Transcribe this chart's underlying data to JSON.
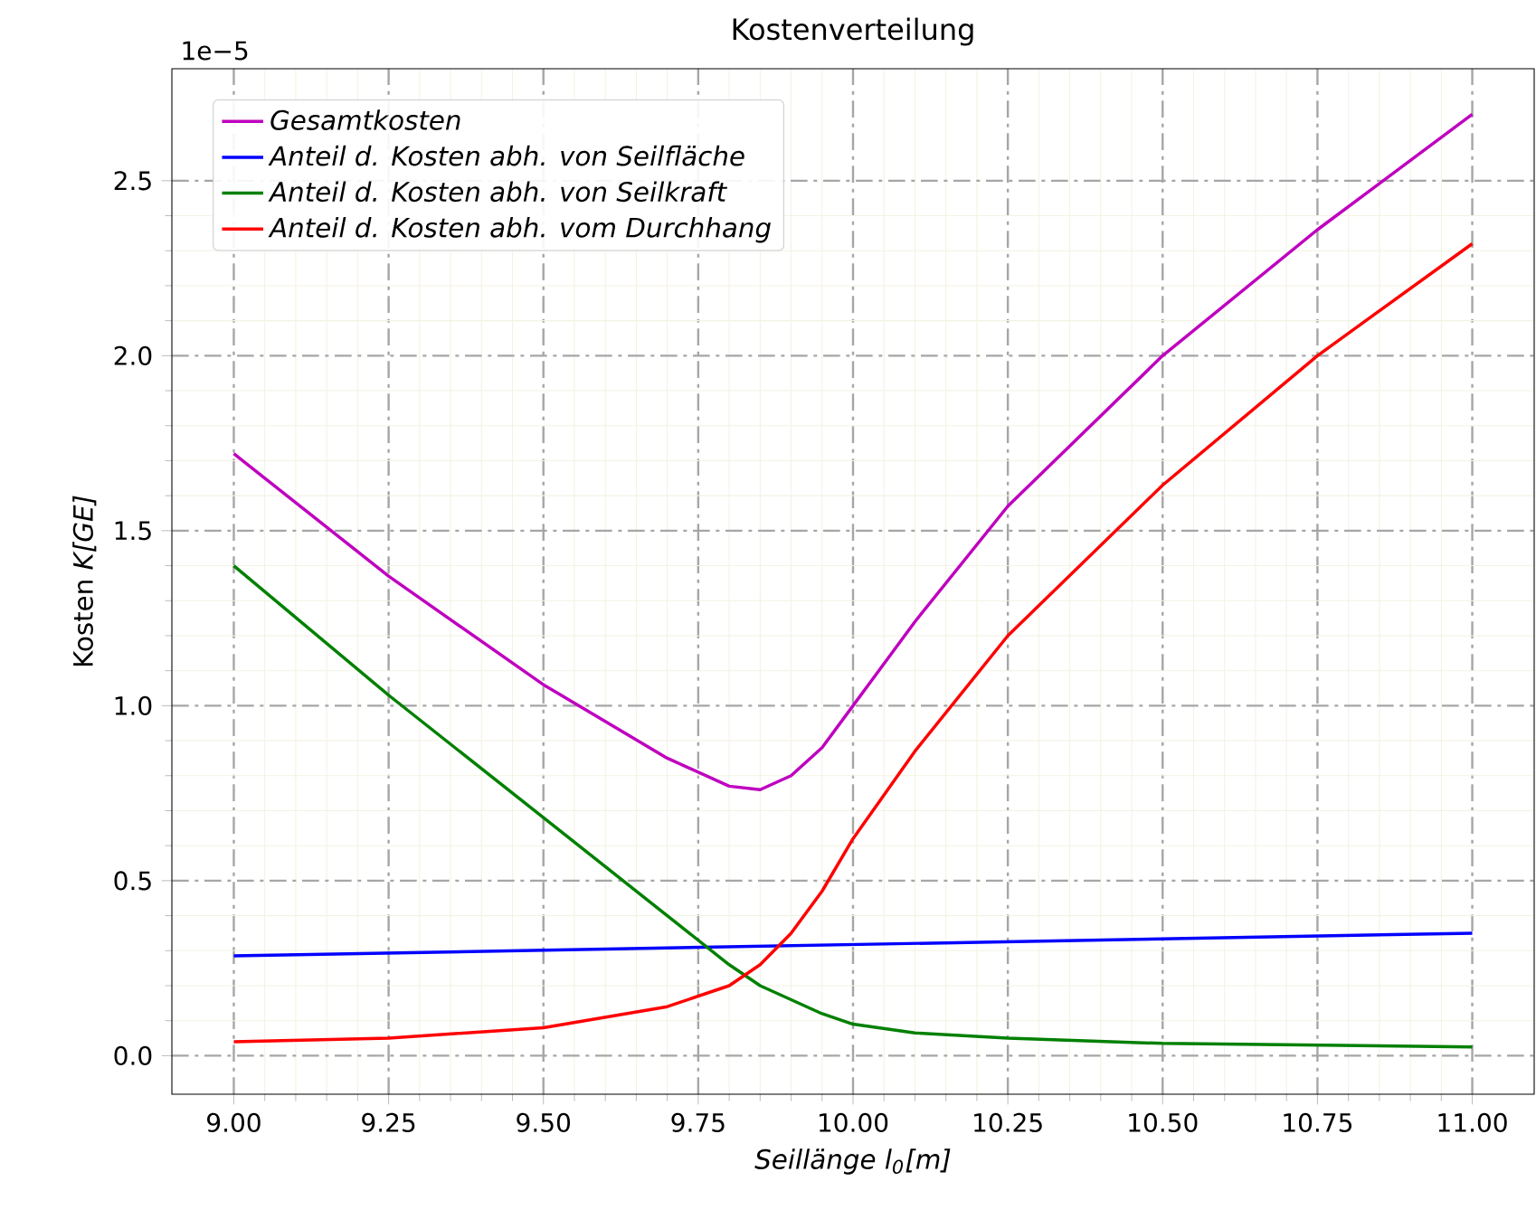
{
  "chart_data": {
    "type": "line",
    "title": "Kostenverteilung",
    "xlabel": "Seillänge l$_{0}$[m]",
    "ylabel": "Kosten *K[GE]*",
    "annotations": [
      "1e−5"
    ],
    "xlim": [
      8.9,
      11.1
    ],
    "ylim": [
      -0.11,
      2.82
    ],
    "xticks": [
      {
        "value": 9,
        "label": "9.00"
      },
      {
        "value": 9.25,
        "label": "9.25"
      },
      {
        "value": 9.5,
        "label": "9.50"
      },
      {
        "value": 9.75,
        "label": "9.75"
      },
      {
        "value": 10,
        "label": "10.00"
      },
      {
        "value": 10.25,
        "label": "10.25"
      },
      {
        "value": 10.5,
        "label": "10.50"
      },
      {
        "value": 10.75,
        "label": "10.75"
      },
      {
        "value": 11,
        "label": "11.00"
      }
    ],
    "yticks": [
      {
        "value": 0,
        "label": "0.0"
      },
      {
        "value": 0.5,
        "label": "0.5"
      },
      {
        "value": 1,
        "label": "1.0"
      },
      {
        "value": 1.5,
        "label": "1.5"
      },
      {
        "value": 2,
        "label": "2.0"
      },
      {
        "value": 2.5,
        "label": "2.5"
      }
    ],
    "grid": true,
    "legend": "top left",
    "marker": "none",
    "line_style": "solid",
    "x": [
      9.0,
      9.25,
      9.5,
      9.7,
      9.8,
      9.85,
      9.9,
      9.95,
      10.0,
      10.1,
      10.25,
      10.5,
      10.75,
      11.0
    ],
    "series": [
      {
        "name": "Gesamtkosten",
        "color": "#bf00bf",
        "values": [
          1.72,
          1.37,
          1.06,
          0.85,
          0.77,
          0.76,
          0.8,
          0.88,
          1.0,
          1.24,
          1.57,
          2.0,
          2.36,
          2.69
        ]
      },
      {
        "name": "Anteil d. Kosten abh. von Seilfläche",
        "color": "#0000ff",
        "x": [
          9.0,
          11.0
        ],
        "values": [
          0.285,
          0.35
        ]
      },
      {
        "name": "Anteil d. Kosten abh. von Seilkraft",
        "color": "#008000",
        "values": [
          1.4,
          1.03,
          0.68,
          0.4,
          0.26,
          0.2,
          0.16,
          0.12,
          0.09,
          0.065,
          0.05,
          0.035,
          0.03,
          0.025
        ]
      },
      {
        "name": "Anteil d. Kosten abh. vom Durchhang",
        "color": "#ff0000",
        "values": [
          0.04,
          0.05,
          0.08,
          0.14,
          0.2,
          0.26,
          0.35,
          0.47,
          0.62,
          0.87,
          1.2,
          1.63,
          2.0,
          2.32
        ]
      }
    ]
  }
}
